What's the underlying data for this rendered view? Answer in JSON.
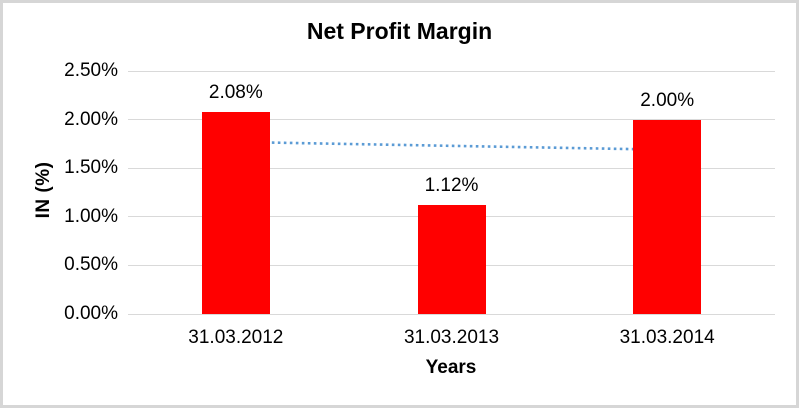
{
  "window": {
    "background": "#ffffff",
    "border_color": "#d6d6d6"
  },
  "chart_data": {
    "type": "bar",
    "title": "Net Profit Margin",
    "xlabel": "Years",
    "ylabel": "IN (%)",
    "categories": [
      "31.03.2012",
      "31.03.2013",
      "31.03.2014"
    ],
    "values": [
      2.08,
      1.12,
      2.0
    ],
    "data_labels": [
      "2.08%",
      "1.12%",
      "2.00%"
    ],
    "ylim": [
      0,
      2.5
    ],
    "ytick_labels": [
      "0.00%",
      "0.50%",
      "1.00%",
      "1.50%",
      "2.00%",
      "2.50%"
    ],
    "grid": true,
    "legend_position": "none",
    "bar_color": "#ff0000",
    "gridline_color": "#d9d9d9",
    "text_color": "#000000",
    "trendline": {
      "type": "linear",
      "style": "dotted",
      "color": "#5b9bd5",
      "start_value": 1.77,
      "end_value": 1.69
    }
  }
}
